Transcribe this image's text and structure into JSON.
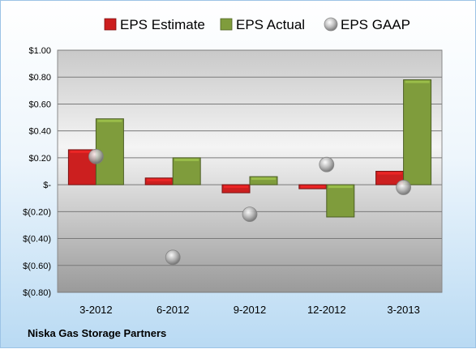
{
  "chart_data": {
    "type": "bar",
    "title": "",
    "company": "Niska Gas Storage Partners",
    "categories": [
      "3-2012",
      "6-2012",
      "9-2012",
      "12-2012",
      "3-2013"
    ],
    "series": [
      {
        "name": "EPS Estimate",
        "kind": "bar",
        "color": "#cc1f1f",
        "values": [
          0.26,
          0.05,
          -0.06,
          -0.03,
          0.1
        ]
      },
      {
        "name": "EPS Actual",
        "kind": "bar",
        "color": "#7f9c3c",
        "values": [
          0.49,
          0.2,
          0.06,
          -0.24,
          0.78
        ]
      },
      {
        "name": "EPS GAAP",
        "kind": "marker",
        "color": "#a6a6a6",
        "values": [
          0.21,
          -0.54,
          -0.22,
          0.15,
          -0.02
        ]
      }
    ],
    "y_ticks": [
      1.0,
      0.8,
      0.6,
      0.4,
      0.2,
      0,
      -0.2,
      -0.4,
      -0.6,
      -0.8
    ],
    "y_tick_labels": [
      "$1.00",
      "$0.80",
      "$0.60",
      "$0.40",
      "$0.20",
      "$-",
      "$(0.20)",
      "$(0.40)",
      "$(0.60)",
      "$(0.80)"
    ],
    "ylim": [
      -0.8,
      1.0
    ],
    "grid": true,
    "legend_position": "top"
  }
}
